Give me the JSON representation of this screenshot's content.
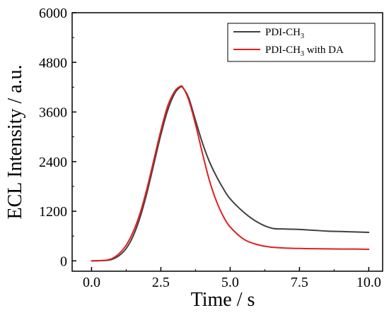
{
  "chart_data": {
    "type": "line",
    "xlabel": "Time / s",
    "ylabel": "ECL Intensity / a.u.",
    "xlim": [
      -0.7,
      10.5
    ],
    "ylim": [
      -250,
      6000
    ],
    "xticks": [
      0.0,
      2.5,
      5.0,
      7.5,
      10.0
    ],
    "xtick_labels": [
      "0.0",
      "2.5",
      "5.0",
      "7.5",
      "10.0"
    ],
    "yticks": [
      0,
      1200,
      2400,
      3600,
      4800,
      6000
    ],
    "ytick_labels": [
      "0",
      "1200",
      "2400",
      "3600",
      "4800",
      "6000"
    ],
    "grid": false,
    "legend_position": "top-right",
    "series": [
      {
        "name_main": "PDI-CH",
        "name_sub": "3",
        "name_suffix": "",
        "color": "#404040",
        "x": [
          0.0,
          0.5,
          0.75,
          1.0,
          1.25,
          1.5,
          1.75,
          2.0,
          2.25,
          2.5,
          2.75,
          3.0,
          3.2,
          3.3,
          3.5,
          3.75,
          4.0,
          4.25,
          4.5,
          4.75,
          5.0,
          5.5,
          6.0,
          6.5,
          7.0,
          7.5,
          8.0,
          8.5,
          9.0,
          9.5,
          10.0
        ],
        "y": [
          0,
          10,
          40,
          130,
          300,
          600,
          1050,
          1650,
          2350,
          3050,
          3650,
          4050,
          4200,
          4180,
          3950,
          3400,
          2850,
          2400,
          2050,
          1750,
          1500,
          1170,
          930,
          790,
          770,
          760,
          740,
          720,
          710,
          700,
          690
        ]
      },
      {
        "name_main": "PDI-CH",
        "name_sub": "3",
        "name_suffix": " with DA",
        "color": "#e02020",
        "x": [
          0.0,
          0.5,
          0.75,
          1.0,
          1.25,
          1.5,
          1.75,
          2.0,
          2.25,
          2.5,
          2.75,
          3.0,
          3.2,
          3.3,
          3.5,
          3.75,
          4.0,
          4.25,
          4.5,
          4.75,
          5.0,
          5.5,
          6.0,
          6.5,
          7.0,
          7.5,
          8.0,
          8.5,
          9.0,
          9.5,
          10.0
        ],
        "y": [
          0,
          15,
          60,
          180,
          380,
          700,
          1150,
          1750,
          2450,
          3150,
          3750,
          4100,
          4220,
          4190,
          3900,
          3300,
          2600,
          1950,
          1450,
          1080,
          820,
          520,
          390,
          330,
          310,
          300,
          295,
          290,
          285,
          285,
          280
        ]
      }
    ]
  }
}
